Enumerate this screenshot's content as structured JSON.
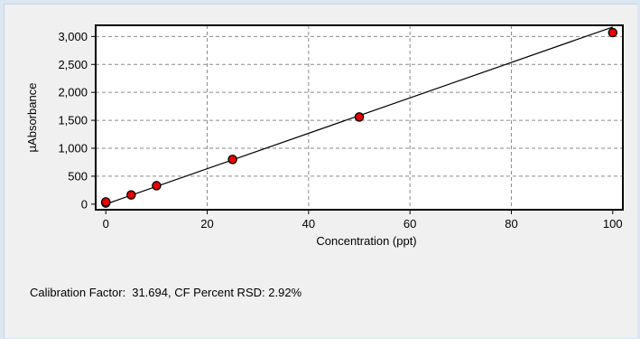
{
  "chart_data": {
    "type": "scatter",
    "xlabel": "Concentration (ppt)",
    "ylabel": "µAbsorbance",
    "xlim": [
      -2,
      102
    ],
    "ylim": [
      -100,
      3200
    ],
    "x_ticks": [
      0,
      20,
      40,
      60,
      80,
      100
    ],
    "y_ticks": [
      0,
      500,
      1000,
      1500,
      2000,
      2500,
      3000
    ],
    "x_tick_labels": [
      "0",
      "20",
      "40",
      "60",
      "80",
      "100"
    ],
    "y_tick_labels": [
      "0",
      "500",
      "1,000",
      "1,500",
      "2,000",
      "2,500",
      "3,000"
    ],
    "grid": true,
    "points": [
      {
        "x": 0,
        "y": 20
      },
      {
        "x": 0,
        "y": 40
      },
      {
        "x": 5,
        "y": 165
      },
      {
        "x": 10,
        "y": 330
      },
      {
        "x": 25,
        "y": 800
      },
      {
        "x": 50,
        "y": 1560
      },
      {
        "x": 100,
        "y": 3070
      }
    ],
    "fit_line": {
      "x": [
        0,
        100
      ],
      "y": [
        0,
        3169.4
      ]
    },
    "marker_color": "#e60000",
    "line_color": "#000000"
  },
  "calibration": {
    "cf_label": "Calibration Factor:",
    "cf_value": "31.694, CF Percent RSD:",
    "rsd_value": "2.92%"
  }
}
